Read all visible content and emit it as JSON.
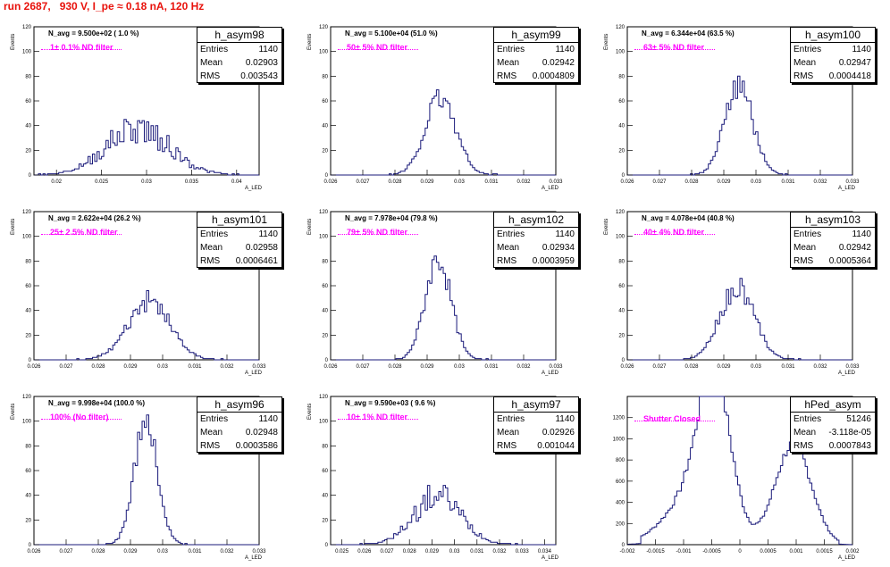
{
  "page_title": "run 2687,   930 V, I_pe ≈ 0.18 nA, 120 Hz",
  "colors": {
    "histogram": "#1a1a7a",
    "filter_text": "#ff00ff",
    "title": "#e8120c"
  },
  "chart_data": [
    {
      "type": "histogram",
      "name": "h_asym98",
      "stats": {
        "entries_label": "Entries",
        "entries": "1140",
        "mean_label": "Mean",
        "mean": "0.02903",
        "rms_label": "RMS",
        "rms": "0.003543"
      },
      "annotation": "N_avg = 9.500e+02 ( 1.0 %)",
      "filter_label": "1± 0.1% ND filter",
      "xlabel": "A_LED",
      "ylabel": "Events",
      "xlim": [
        0.0175,
        0.0425
      ],
      "ylim": [
        0,
        120
      ],
      "xticks": [
        0.02,
        0.025,
        0.03,
        0.035,
        0.04
      ],
      "yticks": [
        0,
        20,
        40,
        60,
        80,
        100,
        120
      ],
      "tick_labels": [
        "0.02",
        "0.025",
        "0.03",
        "0.035",
        "0.04"
      ],
      "ytick_labels": [
        "0",
        "20",
        "40",
        "60",
        "80",
        "100",
        "120"
      ],
      "dist": {
        "type": "gauss",
        "mean": 0.02903,
        "sigma": 0.0035,
        "peak": 38,
        "noise": 0.35,
        "seed": 98
      }
    },
    {
      "type": "histogram",
      "name": "h_asym99",
      "stats": {
        "entries_label": "Entries",
        "entries": "1140",
        "mean_label": "Mean",
        "mean": "0.02942",
        "rms_label": "RMS",
        "rms": "0.0004809"
      },
      "annotation": "N_avg = 5.100e+04 (51.0 %)",
      "filter_label": "50± 5% ND filter",
      "xlabel": "A_LED",
      "ylabel": "Events",
      "xlim": [
        0.026,
        0.033
      ],
      "ylim": [
        0,
        120
      ],
      "xticks": [
        0.026,
        0.027,
        0.028,
        0.029,
        0.03,
        0.031,
        0.032,
        0.033
      ],
      "yticks": [
        0,
        20,
        40,
        60,
        80,
        100,
        120
      ],
      "tick_labels": [
        "0.026",
        "0.027",
        "0.028",
        "0.029",
        "0.03",
        "0.031",
        "0.032",
        "0.033"
      ],
      "ytick_labels": [
        "0",
        "20",
        "40",
        "60",
        "80",
        "100",
        "120"
      ],
      "dist": {
        "type": "gauss",
        "mean": 0.02942,
        "sigma": 0.00048,
        "peak": 62,
        "noise": 0.15,
        "seed": 99
      }
    },
    {
      "type": "histogram",
      "name": "h_asym100",
      "stats": {
        "entries_label": "Entries",
        "entries": "1140",
        "mean_label": "Mean",
        "mean": "0.02947",
        "rms_label": "RMS",
        "rms": "0.0004418"
      },
      "annotation": "N_avg = 6.344e+04 (63.5 %)",
      "filter_label": "63± 5% ND filter",
      "xlabel": "A_LED",
      "ylabel": "Events",
      "xlim": [
        0.026,
        0.033
      ],
      "ylim": [
        0,
        120
      ],
      "xticks": [
        0.026,
        0.027,
        0.028,
        0.029,
        0.03,
        0.031,
        0.032,
        0.033
      ],
      "yticks": [
        0,
        20,
        40,
        60,
        80,
        100,
        120
      ],
      "tick_labels": [
        "0.026",
        "0.027",
        "0.028",
        "0.029",
        "0.03",
        "0.031",
        "0.032",
        "0.033"
      ],
      "ytick_labels": [
        "0",
        "20",
        "40",
        "60",
        "80",
        "100",
        "120"
      ],
      "dist": {
        "type": "gauss",
        "mean": 0.02947,
        "sigma": 0.00044,
        "peak": 72,
        "noise": 0.15,
        "seed": 100
      }
    },
    {
      "type": "histogram",
      "name": "h_asym101",
      "stats": {
        "entries_label": "Entries",
        "entries": "1140",
        "mean_label": "Mean",
        "mean": "0.02958",
        "rms_label": "RMS",
        "rms": "0.0006461"
      },
      "annotation": "N_avg = 2.622e+04 (26.2 %)",
      "filter_label": "25± 2.5% ND filter",
      "xlabel": "A_LED",
      "ylabel": "Events",
      "xlim": [
        0.026,
        0.033
      ],
      "ylim": [
        0,
        120
      ],
      "xticks": [
        0.026,
        0.027,
        0.028,
        0.029,
        0.03,
        0.031,
        0.032,
        0.033
      ],
      "yticks": [
        0,
        20,
        40,
        60,
        80,
        100,
        120
      ],
      "tick_labels": [
        "0.026",
        "0.027",
        "0.028",
        "0.029",
        "0.03",
        "0.031",
        "0.032",
        "0.033"
      ],
      "ytick_labels": [
        "0",
        "20",
        "40",
        "60",
        "80",
        "100",
        "120"
      ],
      "dist": {
        "type": "gauss",
        "mean": 0.02958,
        "sigma": 0.00065,
        "peak": 48,
        "noise": 0.18,
        "seed": 101
      }
    },
    {
      "type": "histogram",
      "name": "h_asym102",
      "stats": {
        "entries_label": "Entries",
        "entries": "1140",
        "mean_label": "Mean",
        "mean": "0.02934",
        "rms_label": "RMS",
        "rms": "0.0003959"
      },
      "annotation": "N_avg = 7.978e+04 (79.8 %)",
      "filter_label": "79± 5% ND filter",
      "xlabel": "A_LED",
      "ylabel": "Events",
      "xlim": [
        0.026,
        0.033
      ],
      "ylim": [
        0,
        120
      ],
      "xticks": [
        0.026,
        0.027,
        0.028,
        0.029,
        0.03,
        0.031,
        0.032,
        0.033
      ],
      "yticks": [
        0,
        20,
        40,
        60,
        80,
        100,
        120
      ],
      "tick_labels": [
        "0.026",
        "0.027",
        "0.028",
        "0.029",
        "0.03",
        "0.031",
        "0.032",
        "0.033"
      ],
      "ytick_labels": [
        "0",
        "20",
        "40",
        "60",
        "80",
        "100",
        "120"
      ],
      "dist": {
        "type": "gauss",
        "mean": 0.02934,
        "sigma": 0.0004,
        "peak": 82,
        "noise": 0.13,
        "seed": 102
      }
    },
    {
      "type": "histogram",
      "name": "h_asym103",
      "stats": {
        "entries_label": "Entries",
        "entries": "1140",
        "mean_label": "Mean",
        "mean": "0.02942",
        "rms_label": "RMS",
        "rms": "0.0005364"
      },
      "annotation": "N_avg = 4.078e+04 (40.8 %)",
      "filter_label": "40± 4% ND filter",
      "xlabel": "A_LED",
      "ylabel": "Events",
      "xlim": [
        0.026,
        0.033
      ],
      "ylim": [
        0,
        120
      ],
      "xticks": [
        0.026,
        0.027,
        0.028,
        0.029,
        0.03,
        0.031,
        0.032,
        0.033
      ],
      "yticks": [
        0,
        20,
        40,
        60,
        80,
        100,
        120
      ],
      "tick_labels": [
        "0.026",
        "0.027",
        "0.028",
        "0.029",
        "0.03",
        "0.031",
        "0.032",
        "0.033"
      ],
      "ytick_labels": [
        "0",
        "20",
        "40",
        "60",
        "80",
        "100",
        "120"
      ],
      "dist": {
        "type": "gauss",
        "mean": 0.02942,
        "sigma": 0.00054,
        "peak": 58,
        "noise": 0.16,
        "seed": 103
      }
    },
    {
      "type": "histogram",
      "name": "h_asym96",
      "stats": {
        "entries_label": "Entries",
        "entries": "1140",
        "mean_label": "Mean",
        "mean": "0.02948",
        "rms_label": "RMS",
        "rms": "0.0003586"
      },
      "annotation": "N_avg = 9.998e+04 (100.0 %)",
      "filter_label": "100% (No filter)",
      "xlabel": "A_LED",
      "ylabel": "Events",
      "xlim": [
        0.026,
        0.033
      ],
      "ylim": [
        0,
        120
      ],
      "xticks": [
        0.026,
        0.027,
        0.028,
        0.029,
        0.03,
        0.031,
        0.032,
        0.033
      ],
      "yticks": [
        0,
        20,
        40,
        60,
        80,
        100,
        120
      ],
      "tick_labels": [
        "0.026",
        "0.027",
        "0.028",
        "0.029",
        "0.03",
        "0.031",
        "0.032",
        "0.033"
      ],
      "ytick_labels": [
        "0",
        "20",
        "40",
        "60",
        "80",
        "100",
        "120"
      ],
      "dist": {
        "type": "gauss",
        "mean": 0.02948,
        "sigma": 0.00036,
        "peak": 100,
        "noise": 0.12,
        "seed": 96
      }
    },
    {
      "type": "histogram",
      "name": "h_asym97",
      "stats": {
        "entries_label": "Entries",
        "entries": "1140",
        "mean_label": "Mean",
        "mean": "0.02926",
        "rms_label": "RMS",
        "rms": "0.001044"
      },
      "annotation": "N_avg = 9.590e+03 ( 9.6 %)",
      "filter_label": "10± 1% ND filter",
      "xlabel": "A_LED",
      "ylabel": "Events",
      "xlim": [
        0.0245,
        0.0345
      ],
      "ylim": [
        0,
        120
      ],
      "xticks": [
        0.025,
        0.026,
        0.027,
        0.028,
        0.029,
        0.03,
        0.031,
        0.032,
        0.033,
        0.034
      ],
      "yticks": [
        0,
        20,
        40,
        60,
        80,
        100,
        120
      ],
      "tick_labels": [
        "0.025",
        "0.026",
        "0.027",
        "0.028",
        "0.029",
        "0.03",
        "0.031",
        "0.032",
        "0.033",
        "0.034"
      ],
      "ytick_labels": [
        "0",
        "20",
        "40",
        "60",
        "80",
        "100",
        "120"
      ],
      "dist": {
        "type": "gauss",
        "mean": 0.02926,
        "sigma": 0.00104,
        "peak": 40,
        "noise": 0.3,
        "seed": 97
      }
    },
    {
      "type": "histogram",
      "name": "hPed_asym",
      "stats": {
        "entries_label": "Entries",
        "entries": "51246",
        "mean_label": "Mean",
        "mean": "-3.118e-05",
        "rms_label": "RMS",
        "rms": "0.0007843"
      },
      "annotation": "",
      "filter_label": "Shutter Closed",
      "xlabel": "A_LED",
      "ylabel": "",
      "xlim": [
        -0.002,
        0.002
      ],
      "ylim": [
        0,
        1400
      ],
      "xticks": [
        -0.002,
        -0.0015,
        -0.001,
        -0.0005,
        0,
        0.0005,
        0.001,
        0.0015,
        0.002
      ],
      "yticks": [
        0,
        200,
        400,
        600,
        800,
        1000,
        1200
      ],
      "tick_labels": [
        "-0.002",
        "-0.0015",
        "-0.001",
        "-0.0005",
        "0",
        "0.0005",
        "0.001",
        "0.0015",
        "0.002"
      ],
      "ytick_labels": [
        "0",
        "200",
        "400",
        "600",
        "800",
        "1000",
        "1200"
      ],
      "dist": {
        "type": "ped",
        "seed": 7
      }
    }
  ]
}
